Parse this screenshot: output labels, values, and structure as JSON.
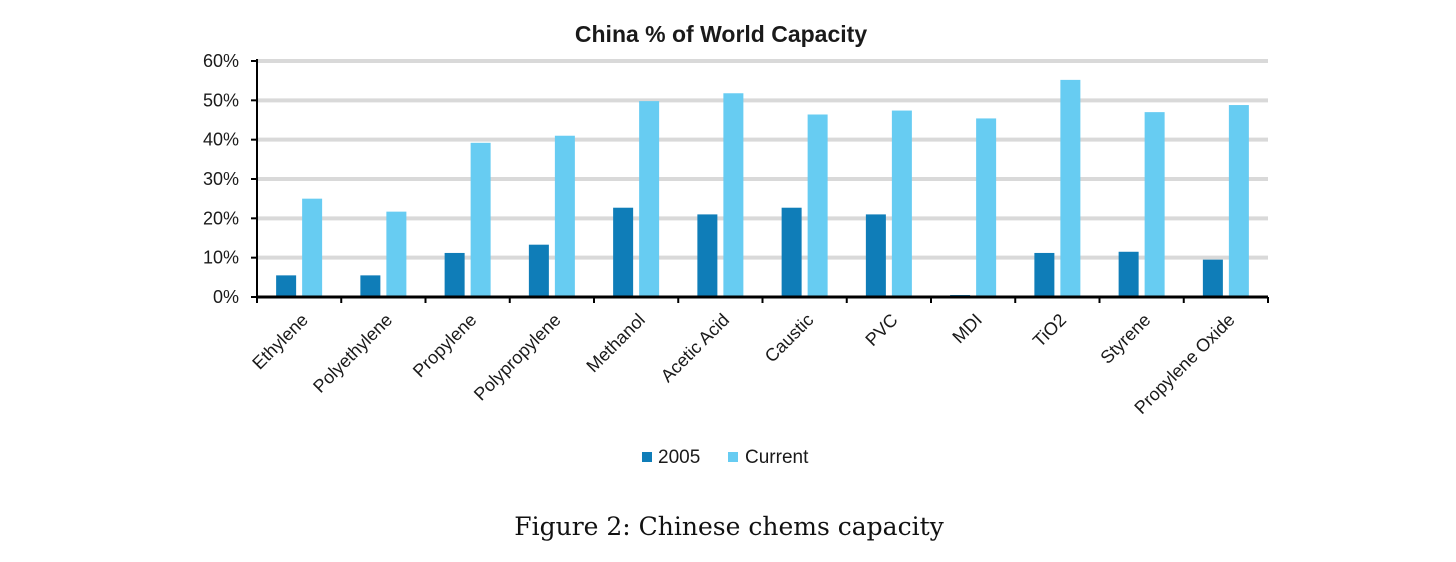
{
  "chart_data": {
    "type": "bar",
    "title": "China % of World Capacity",
    "xlabel": "",
    "ylabel": "",
    "ylim": [
      0,
      60
    ],
    "yticks": [
      "0%",
      "10%",
      "20%",
      "30%",
      "40%",
      "50%",
      "60%"
    ],
    "ytick_values": [
      0,
      10,
      20,
      30,
      40,
      50,
      60
    ],
    "grid": true,
    "legend_position": "bottom",
    "categories": [
      "Ethylene",
      "Polyethylene",
      "Propylene",
      "Polypropylene",
      "Methanol",
      "Acetic Acid",
      "Caustic",
      "PVC",
      "MDI",
      "TiO2",
      "Styrene",
      "Propylene Oxide"
    ],
    "series": [
      {
        "name": "2005",
        "color": "#0f7db8",
        "values": [
          5.5,
          5.5,
          11.2,
          13.3,
          22.7,
          21.0,
          22.7,
          21.0,
          0.5,
          11.2,
          11.5,
          9.5
        ]
      },
      {
        "name": "Current",
        "color": "#67ccf2",
        "values": [
          25.0,
          21.7,
          39.2,
          41.0,
          49.8,
          51.8,
          46.4,
          47.4,
          45.4,
          55.2,
          47.0,
          48.8
        ]
      }
    ]
  },
  "caption": "Figure 2: Chinese chems capacity",
  "colors": {
    "grid": "#d9d9d9",
    "axis": "#000000"
  }
}
